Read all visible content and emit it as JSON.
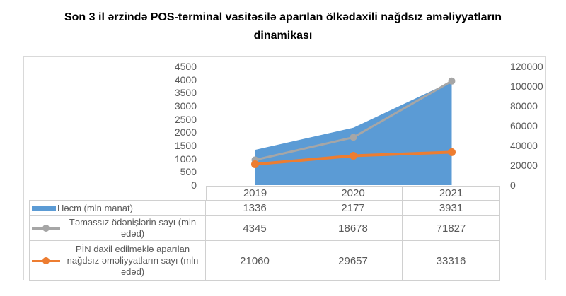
{
  "title": {
    "text": "Son 3 il ərzində POS-terminal vasitəsilə aparılan ölkədaxili nağdsız əməliyyatların dinamikası",
    "lines": [
      "Son 3 il ərzində POS-terminal vasitəsilə aparılan ölkədaxili nağdsız əməliyyatların",
      "dinamikası"
    ]
  },
  "chart_data": {
    "type": "area",
    "subtype": "combo area + stacked marker-lines with data table legend",
    "categories": [
      "2019",
      "2020",
      "2021"
    ],
    "series": [
      {
        "name": "Həcm (mln manat)",
        "display_lines": [
          "Həcm (mln manat)"
        ],
        "type": "area",
        "axis": "left",
        "color": "#5B9BD5",
        "values": [
          1336,
          2177,
          3931
        ]
      },
      {
        "name": "Təmassız ödənişlərin sayı (mln ədəd)",
        "display_lines": [
          "Təmassız ödənişlərin sayı (mln",
          "ədəd)"
        ],
        "type": "line",
        "axis": "right",
        "color": "#A6A6A6",
        "values": [
          4345,
          18678,
          71827
        ],
        "plot_offset_series": 2
      },
      {
        "name": "PİN daxil edilməklə aparılan nağdsız əməliyyatların sayı (mln ədəd)",
        "display_lines": [
          "PİN daxil edilməklə aparılan",
          "nağdsız əməliyyatların sayı (mln",
          "ədəd)"
        ],
        "type": "line",
        "axis": "right",
        "color": "#ED7D31",
        "values": [
          21060,
          29657,
          33316
        ]
      }
    ],
    "left_axis": {
      "min": 0,
      "max": 4500,
      "step": 500,
      "ticks": [
        "0",
        "500",
        "1000",
        "1500",
        "2000",
        "2500",
        "3000",
        "3500",
        "4000",
        "4500"
      ]
    },
    "right_axis": {
      "min": 0,
      "max": 120000,
      "step": 20000,
      "ticks": [
        "0",
        "20000",
        "40000",
        "60000",
        "80000",
        "100000",
        "120000"
      ]
    },
    "grid": false,
    "legend_position": "data-table-left-column"
  },
  "colors": {
    "title_text": "#000000",
    "axis_text": "#595959",
    "table_text": "#595959",
    "frame_border": "#D9D9D9",
    "table_border": "#D0D0D0",
    "background": "#FFFFFF"
  }
}
